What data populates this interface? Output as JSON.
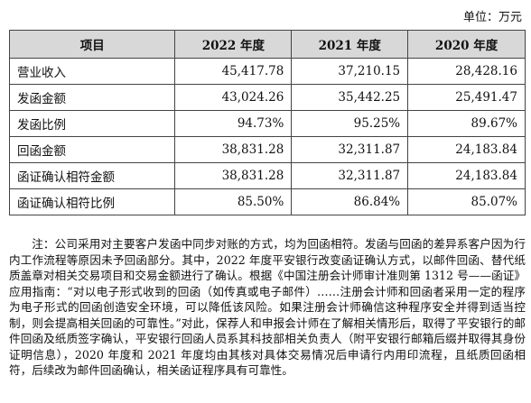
{
  "unit_label": "单位：万元",
  "table": {
    "headers": [
      "项目",
      "2022 年度",
      "2021 年度",
      "2020 年度"
    ],
    "rows": [
      {
        "label": "营业收入",
        "values": [
          "45,417.78",
          "37,210.15",
          "28,428.16"
        ]
      },
      {
        "label": "发函金额",
        "values": [
          "43,024.26",
          "35,442.25",
          "25,491.47"
        ]
      },
      {
        "label": "发函比例",
        "values": [
          "94.73%",
          "95.25%",
          "89.67%"
        ]
      },
      {
        "label": "回函金额",
        "values": [
          "38,831.28",
          "32,311.87",
          "24,183.84"
        ]
      },
      {
        "label": "函证确认相符金额",
        "values": [
          "38,831.28",
          "32,311.87",
          "24,183.84"
        ]
      },
      {
        "label": "函证确认相符比例",
        "values": [
          "85.50%",
          "86.84%",
          "85.07%"
        ]
      }
    ]
  },
  "note": "注：公司采用对主要客户发函中同步对账的方式，均为回函相符。发函与回函的差异系客户因为行内工作流程等原因未予回函部分。其中，2022 年度平安银行改变函证确认方式，以邮件回函、替代纸质盖章对相关交易项目和交易金额进行了确认。根据《中国注册会计师审计准则第 1312 号——函证》应用指南：“对以电子形式收到的回函（如传真或电子邮件）……注册会计师和回函者采用一定的程序为电子形式的回函创造安全环境，可以降低该风险。如果注册会计师确信这种程序安全并得到适当控制，则会提高相关回函的可靠性。”对此，保荐人和申报会计师在了解相关情形后，取得了平安银行的邮件回函及纸质签字确认，平安银行回函人员系其科技部相关负责人（附平安银行邮箱后缀并取得其身份证明信息），2020 年度和 2021 年度均由其核对具体交易情况后申请行内用印流程，且纸质回函相符，后续改为邮件回函确认，相关函证程序具有可靠性。"
}
